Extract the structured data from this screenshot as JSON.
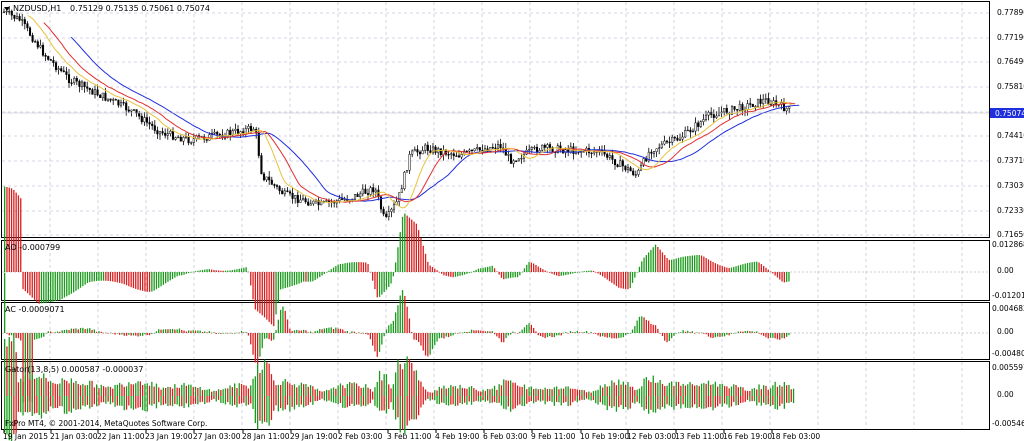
{
  "main": {
    "symbol_label": "NZDUSD,H1",
    "ohlc": "0.75129 0.75135 0.75061 0.75074",
    "price_ticks": [
      "0.77890",
      "0.77190",
      "0.76490",
      "0.75810",
      "0.75074",
      "0.74410",
      "0.73710",
      "0.73030",
      "0.72330",
      "0.71650"
    ],
    "current_price": "0.75074",
    "colors": {
      "candle": "#000000",
      "ma_blue": "#1f2fdc",
      "ma_red": "#e23030",
      "ma_yellow": "#e8c23a",
      "grid": "#c8c8dc",
      "current_tag": "#1f2fdc"
    }
  },
  "ao": {
    "label": "AO -0.000799",
    "ticks": [
      "0.012868",
      "0.00",
      "-0.012013"
    ],
    "colors": {
      "up": "#1a9a1a",
      "down": "#d81e1e"
    }
  },
  "ac": {
    "label": "AC -0.0009071",
    "ticks": [
      "0.004682",
      "0.00",
      "-0.004809"
    ]
  },
  "gator": {
    "label": "Gator(13,8,5) 0.000587 -0.000037",
    "ticks": [
      "0.005597",
      "0.00",
      "-0.005465"
    ]
  },
  "footer": {
    "copyright": "FxPro MT4, © 2001-2014, MetaQuotes Software Corp."
  },
  "time_axis": [
    "19 Jan 2015",
    "21 Jan 03:00",
    "22 Jan 11:00",
    "23 Jan 19:00",
    "27 Jan 03:00",
    "28 Jan 11:00",
    "29 Jan 19:00",
    "2 Feb 03:00",
    "3 Feb 11:00",
    "4 Feb 19:00",
    "6 Feb 03:00",
    "9 Feb 11:00",
    "10 Feb 19:00",
    "12 Feb 03:00",
    "13 Feb 11:00",
    "16 Feb 19:00",
    "18 Feb 03:00"
  ],
  "icons": {
    "dropdown": "triangle-down-icon"
  }
}
